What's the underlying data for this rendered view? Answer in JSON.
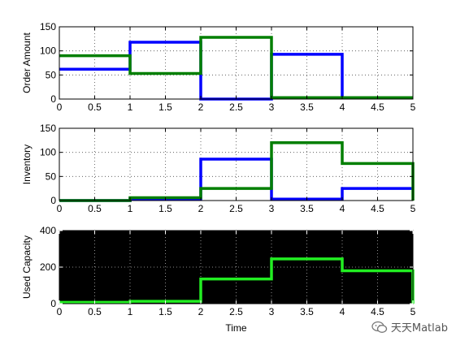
{
  "chart_data": [
    {
      "type": "line",
      "step": "post",
      "xlabel": "",
      "ylabel": "Order Amount",
      "xlim": [
        0,
        5
      ],
      "ylim": [
        0,
        150
      ],
      "xticks": [
        0,
        0.5,
        1,
        1.5,
        2,
        2.5,
        3,
        3.5,
        4,
        4.5,
        5
      ],
      "xticklabels": [
        "0",
        "0.5",
        "1",
        "1.5",
        "2",
        "2.5",
        "3",
        "3.5",
        "4",
        "4.5",
        "5"
      ],
      "yticks": [
        0,
        50,
        100,
        150
      ],
      "yticklabels": [
        "0",
        "50",
        "100",
        "150"
      ],
      "grid": true,
      "background": "#ffffff",
      "series": [
        {
          "color": "#0000ff",
          "x": [
            0,
            1,
            2,
            3,
            4,
            5
          ],
          "values": [
            62,
            118,
            0,
            93,
            3,
            3
          ]
        },
        {
          "color": "#007f00",
          "x": [
            0,
            1,
            2,
            3,
            4,
            5
          ],
          "values": [
            90,
            53,
            128,
            3,
            3,
            3
          ]
        }
      ]
    },
    {
      "type": "line",
      "step": "post",
      "xlabel": "",
      "ylabel": "Inventory",
      "xlim": [
        0,
        5
      ],
      "ylim": [
        0,
        150
      ],
      "xticks": [
        0,
        0.5,
        1,
        1.5,
        2,
        2.5,
        3,
        3.5,
        4,
        4.5,
        5
      ],
      "xticklabels": [
        "0",
        "0.5",
        "1",
        "1.5",
        "2",
        "2.5",
        "3",
        "3.5",
        "4",
        "4.5",
        "5"
      ],
      "yticks": [
        0,
        50,
        100,
        150
      ],
      "yticklabels": [
        "0",
        "50",
        "100",
        "150"
      ],
      "grid": true,
      "background": "#ffffff",
      "series": [
        {
          "color": "#0000ff",
          "x": [
            0,
            1,
            2,
            3,
            4,
            5
          ],
          "values": [
            0,
            3,
            86,
            3,
            25,
            25
          ]
        },
        {
          "color": "#007f00",
          "x": [
            0,
            1,
            2,
            3,
            4,
            5
          ],
          "values": [
            0,
            6,
            25,
            120,
            77,
            0
          ]
        }
      ]
    },
    {
      "type": "line",
      "step": "post",
      "xlabel": "Time",
      "ylabel": "Used Capacity",
      "xlim": [
        0,
        5
      ],
      "ylim": [
        0,
        400
      ],
      "xticks": [
        0,
        0.5,
        1,
        1.5,
        2,
        2.5,
        3,
        3.5,
        4,
        4.5,
        5
      ],
      "xticklabels": [
        "0",
        "0.5",
        "1",
        "1.5",
        "2",
        "2.5",
        "3",
        "3.5",
        "4",
        "4.5",
        "5"
      ],
      "yticks": [
        0,
        200,
        400
      ],
      "yticklabels": [
        "0",
        "200",
        "400"
      ],
      "grid": true,
      "background": "#000000",
      "series": [
        {
          "color": "#22ee22",
          "x": [
            0,
            1,
            2,
            3,
            4,
            5
          ],
          "values": [
            7,
            13,
            135,
            245,
            180,
            0
          ]
        }
      ]
    }
  ],
  "watermark": {
    "icon": "wechat-icon",
    "text": "天天Matlab"
  }
}
